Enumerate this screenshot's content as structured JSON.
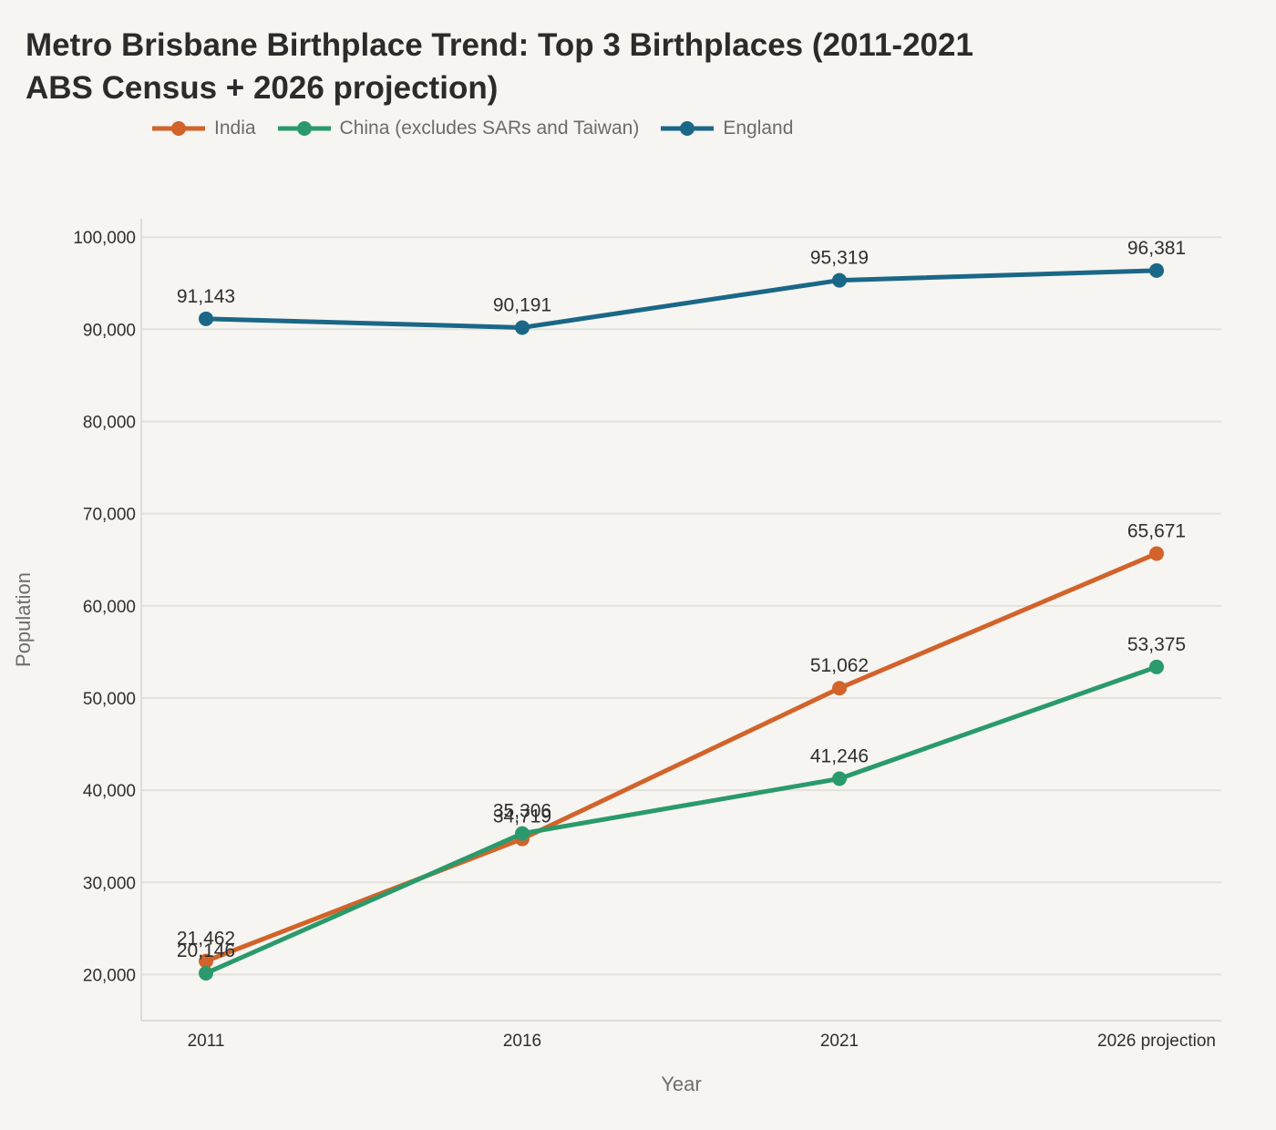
{
  "chart_data": {
    "type": "line",
    "title": "Metro Brisbane Birthplace Trend: Top 3 Birthplaces (2011-2021 ABS Census + 2026 projection)",
    "xlabel": "Year",
    "ylabel": "Population",
    "categories": [
      "2011",
      "2016",
      "2021",
      "2026 projection"
    ],
    "ylim": [
      15000,
      102000
    ],
    "yticks": [
      20000,
      30000,
      40000,
      50000,
      60000,
      70000,
      80000,
      90000,
      100000
    ],
    "ytick_labels": [
      "20,000",
      "30,000",
      "40,000",
      "50,000",
      "60,000",
      "70,000",
      "80,000",
      "90,000",
      "100,000"
    ],
    "grid": true,
    "legend_position": "top-left",
    "series": [
      {
        "name": "India",
        "color": "#d2632a",
        "values": [
          21462,
          34719,
          51062,
          65671
        ],
        "labels": [
          "21,462",
          "34,719",
          "51,062",
          "65,671"
        ]
      },
      {
        "name": "China (excludes SARs and Taiwan)",
        "color": "#2a9a6c",
        "values": [
          20146,
          35306,
          41246,
          53375
        ],
        "labels": [
          "20,146",
          "35,306",
          "41,246",
          "53,375"
        ]
      },
      {
        "name": "England",
        "color": "#1b6787",
        "values": [
          91143,
          90191,
          95319,
          96381
        ],
        "labels": [
          "91,143",
          "90,191",
          "95,319",
          "96,381"
        ]
      }
    ]
  }
}
